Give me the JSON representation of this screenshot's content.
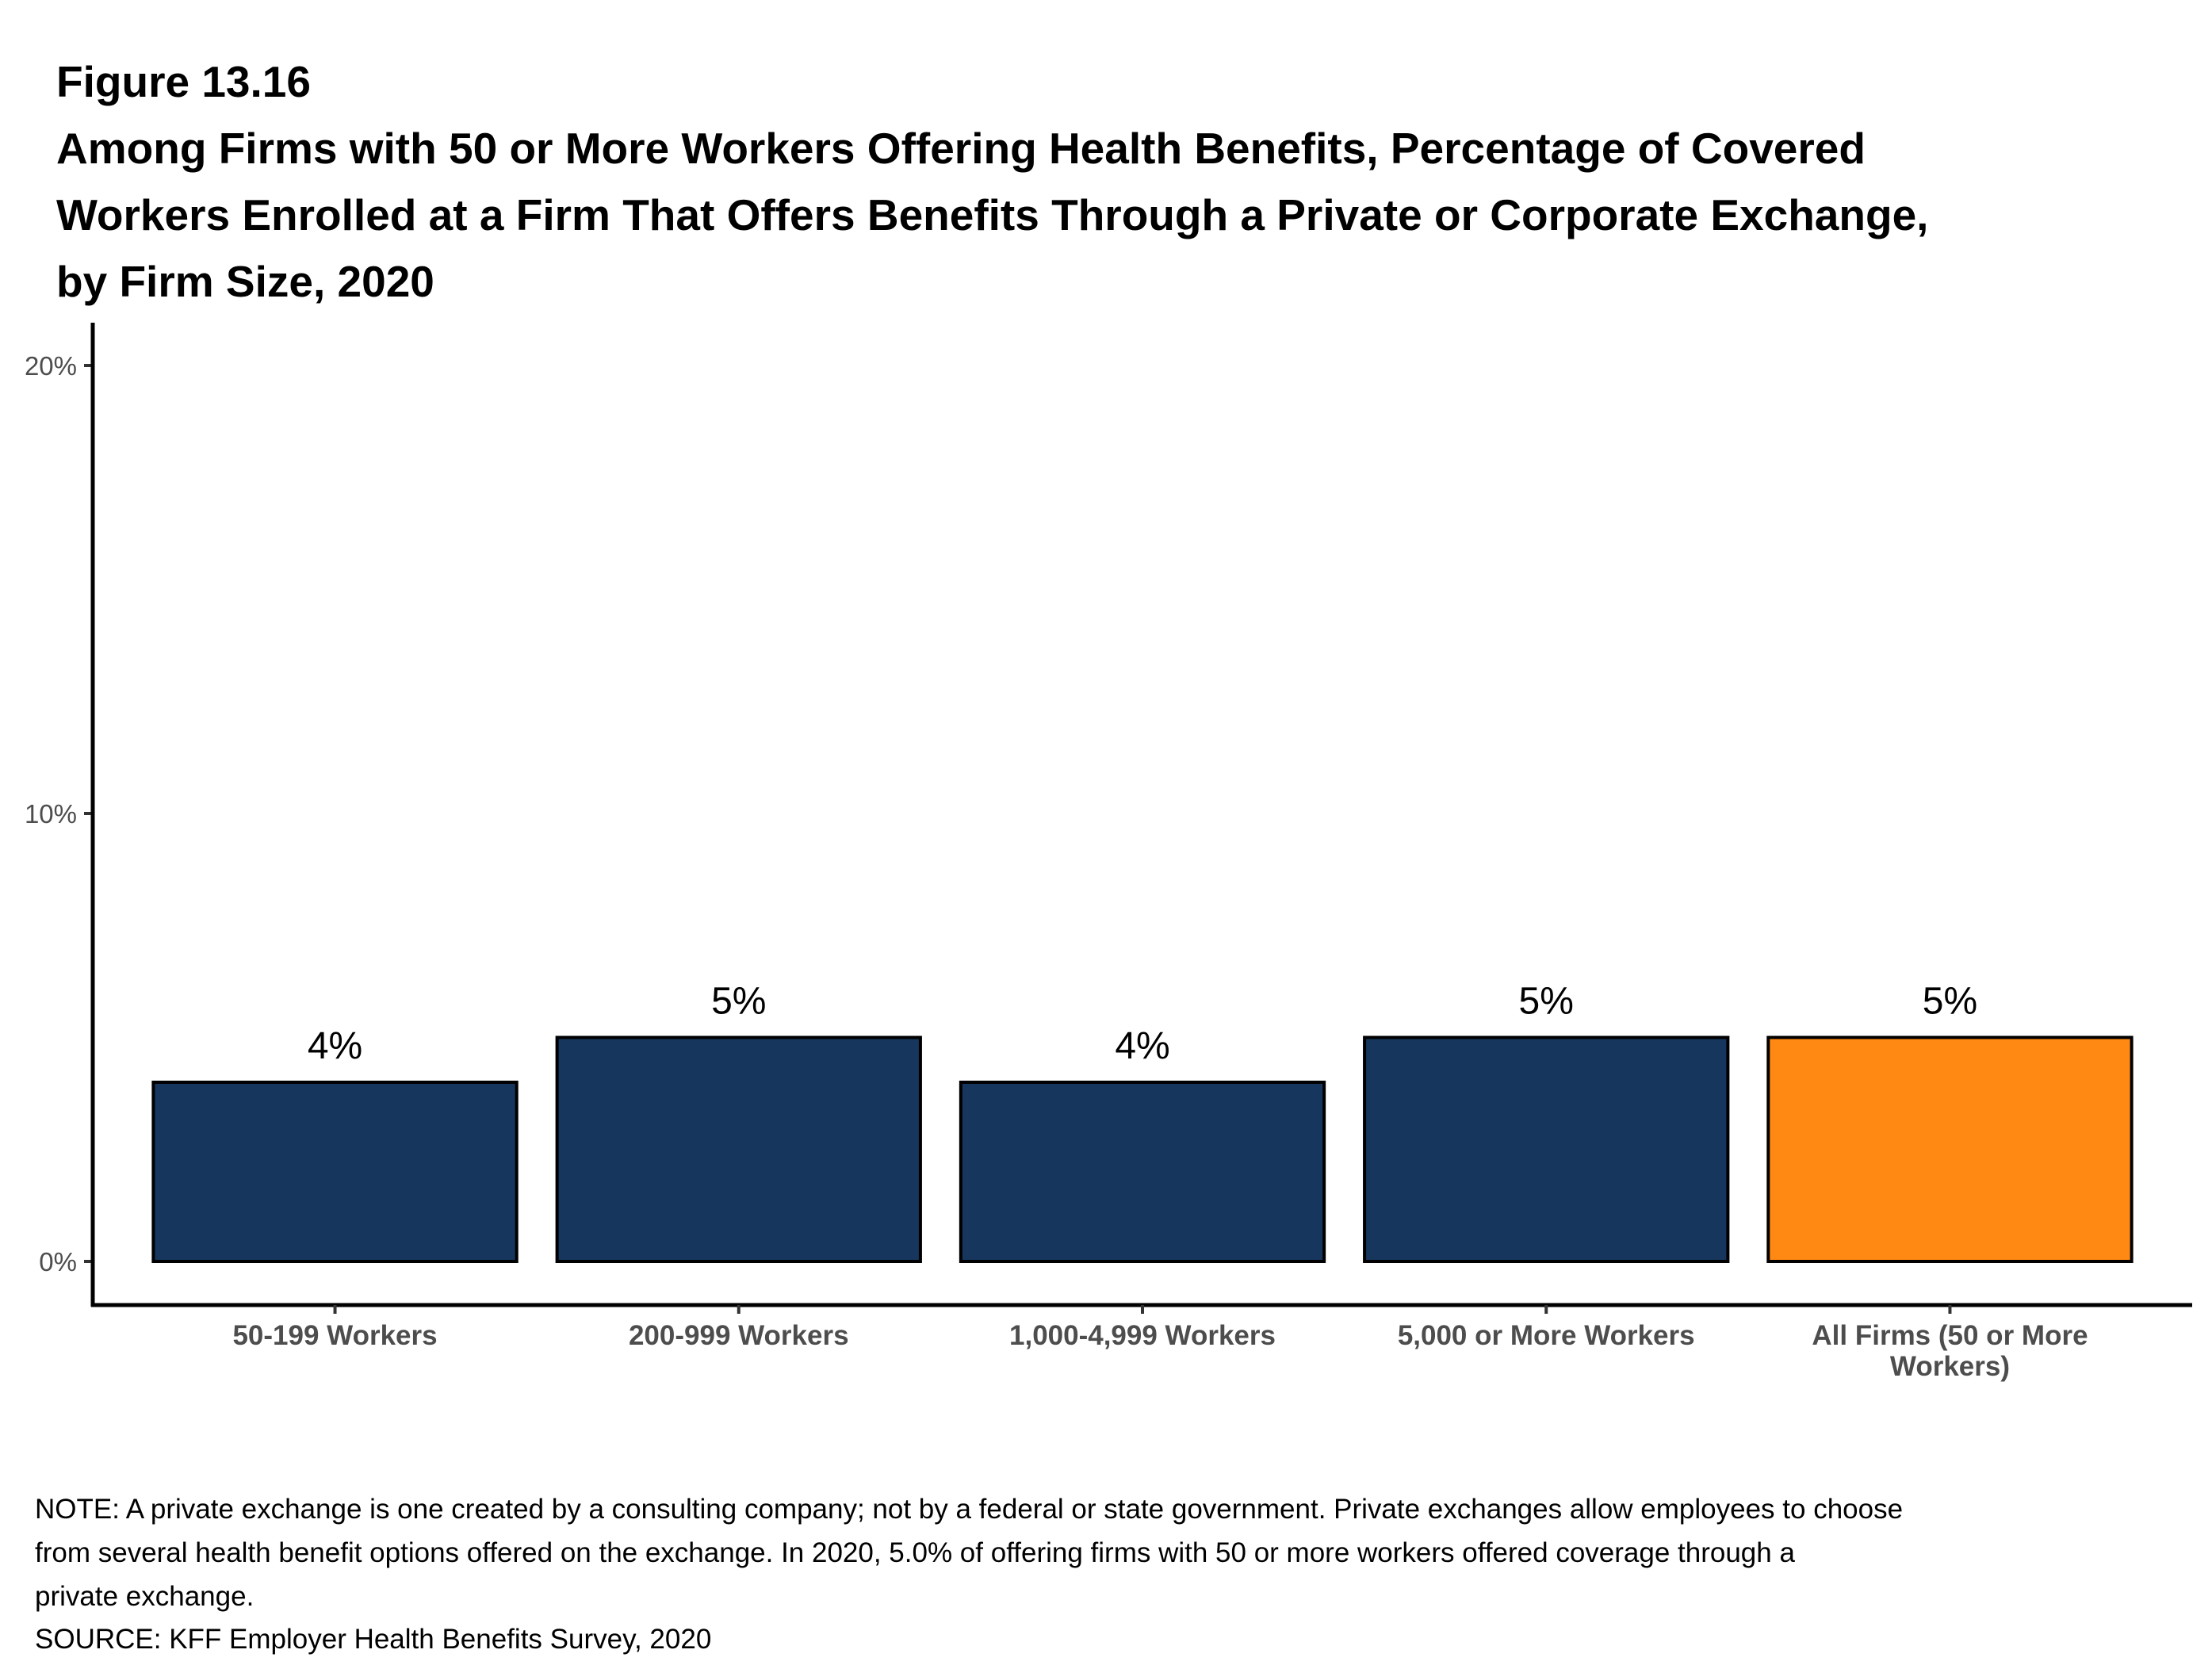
{
  "figure_label": "Figure 13.16",
  "title_lines": [
    "Among Firms with 50 or More Workers Offering Health Benefits, Percentage of Covered",
    "Workers Enrolled at a Firm That Offers Benefits Through a Private or Corporate Exchange,",
    "by Firm Size, 2020"
  ],
  "chart_data": {
    "type": "bar",
    "title": "Among Firms with 50 or More Workers Offering Health Benefits, Percentage of Covered Workers Enrolled at a Firm That Offers Benefits Through a Private or Corporate Exchange, by Firm Size, 2020",
    "categories": [
      "50-199 Workers",
      "200-999 Workers",
      "1,000-4,999 Workers",
      "5,000 or More Workers",
      "All Firms (50 or More Workers)"
    ],
    "category_label_lines": [
      [
        "50-199 Workers"
      ],
      [
        "200-999 Workers"
      ],
      [
        "1,000-4,999 Workers"
      ],
      [
        "5,000 or More Workers"
      ],
      [
        "All Firms (50 or More",
        "Workers)"
      ]
    ],
    "values": [
      4,
      5,
      4,
      5,
      5
    ],
    "data_labels": [
      "4%",
      "5%",
      "4%",
      "5%",
      "5%"
    ],
    "bar_colors": [
      "#17365D",
      "#17365D",
      "#17365D",
      "#17365D",
      "#FF8912"
    ],
    "xlabel": "",
    "ylabel": "",
    "ylim": [
      -1,
      21
    ],
    "yticks": [
      0,
      10,
      20
    ],
    "ytick_labels": [
      "0%",
      "10%",
      "20%"
    ],
    "grid": false,
    "legend": "none"
  },
  "notes": [
    "NOTE: A private exchange is one created by a consulting company; not by a federal or state government. Private exchanges allow employees to choose",
    "from several health benefit options offered on the exchange. In 2020, 5.0% of offering firms with 50 or more workers offered coverage through a",
    "private exchange.",
    "SOURCE: KFF Employer Health Benefits Survey, 2020"
  ]
}
